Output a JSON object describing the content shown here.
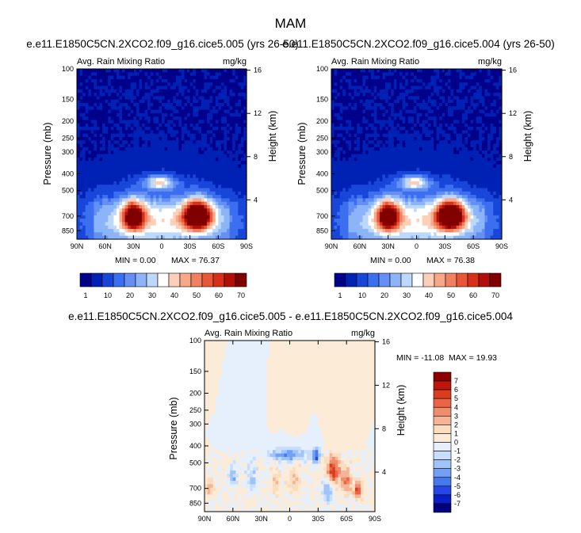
{
  "figure": {
    "title": "MAM",
    "diff_title": "e.e11.E1850C5CN.2XCO2.f09_g16.cice5.005 - e.e11.E1850C5CN.2XCO2.f09_g16.cice5.004"
  },
  "colors": {
    "background_field": "#00008b",
    "abs_palette": [
      "#00008b",
      "#0022b4",
      "#1846d8",
      "#3c6ef0",
      "#6490f4",
      "#8cb4f8",
      "#bcd8fc",
      "#ffffff",
      "#fcd0b8",
      "#f8a888",
      "#f08060",
      "#e85838",
      "#d83018",
      "#b01008",
      "#800000"
    ],
    "diff_palette": [
      "#00007f",
      "#0a1ec8",
      "#2846e6",
      "#4678f0",
      "#73a0f5",
      "#a0c3fa",
      "#c8defc",
      "#e6f0fc",
      "#fcebd7",
      "#fadcbe",
      "#f5b496",
      "#f08c6e",
      "#eb6446",
      "#dc3c1e",
      "#be140a",
      "#8c0000"
    ]
  },
  "chart_data": [
    {
      "type": "heatmap",
      "name": "panel-1",
      "title": "e.e11.E1850C5CN.2XCO2.f09_g16.cice5.005 (yrs 26-50)",
      "left_label": "Avg. Rain Mixing Ratio",
      "right_label": "mg/kg",
      "xlabel": "",
      "ylabel": "Pressure (mb)",
      "y2label": "Height (km)",
      "x_ticks": [
        "90N",
        "60N",
        "30N",
        "0",
        "30S",
        "60S",
        "90S"
      ],
      "x_range": [
        90,
        -90
      ],
      "y_ticks": [
        "100",
        "150",
        "200",
        "250",
        "300",
        "400",
        "500",
        "700",
        "850"
      ],
      "y_tick_values": [
        100,
        150,
        200,
        250,
        300,
        400,
        500,
        700,
        850
      ],
      "y_range": [
        100,
        950
      ],
      "y2_ticks": [
        "16",
        "12",
        "8",
        "4"
      ],
      "y2_tick_values": [
        16,
        12,
        8,
        4
      ],
      "min_label": "MIN =   0.00",
      "max_label": "MAX =  76.37",
      "min": 0.0,
      "max": 76.37,
      "features": [
        {
          "lat": 30,
          "p": 705,
          "amp": 60,
          "lat_width": 8,
          "p_width": 90,
          "shape": "gauss"
        },
        {
          "lat": -38,
          "p": 700,
          "amp": 76,
          "lat_width": 10,
          "p_width": 90,
          "shape": "gauss"
        },
        {
          "lat": 2,
          "p": 450,
          "amp": 32,
          "lat_width": 11,
          "p_width": 28,
          "shape": "gauss"
        },
        {
          "lat": 0,
          "p": 760,
          "amp": 26,
          "lat_width": 60,
          "p_width": 180,
          "shape": "gauss"
        }
      ],
      "colorbar": {
        "labels": [
          "1",
          "10",
          "20",
          "30",
          "40",
          "50",
          "60",
          "70"
        ],
        "levels": [
          1,
          5,
          10,
          15,
          20,
          25,
          30,
          35,
          40,
          45,
          50,
          55,
          60,
          65,
          70
        ]
      }
    },
    {
      "type": "heatmap",
      "name": "panel-2",
      "title": "e.e11.E1850C5CN.2XCO2.f09_g16.cice5.004 (yrs 26-50)",
      "left_label": "Avg. Rain Mixing Ratio",
      "right_label": "mg/kg",
      "xlabel": "",
      "ylabel": "Pressure (mb)",
      "y2label": "Height (km)",
      "x_ticks": [
        "90N",
        "60N",
        "30N",
        "0",
        "30S",
        "60S",
        "90S"
      ],
      "x_range": [
        90,
        -90
      ],
      "y_ticks": [
        "100",
        "150",
        "200",
        "250",
        "300",
        "400",
        "500",
        "700",
        "850"
      ],
      "y_tick_values": [
        100,
        150,
        200,
        250,
        300,
        400,
        500,
        700,
        850
      ],
      "y_range": [
        100,
        950
      ],
      "y2_ticks": [
        "16",
        "12",
        "8",
        "4"
      ],
      "y2_tick_values": [
        16,
        12,
        8,
        4
      ],
      "min_label": "MIN =   0.00",
      "max_label": "MAX =  76.38",
      "min": 0.0,
      "max": 76.38,
      "features": [
        {
          "lat": 30,
          "p": 705,
          "amp": 62,
          "lat_width": 8,
          "p_width": 90,
          "shape": "gauss"
        },
        {
          "lat": -36,
          "p": 700,
          "amp": 76,
          "lat_width": 10,
          "p_width": 90,
          "shape": "gauss"
        },
        {
          "lat": 2,
          "p": 450,
          "amp": 32,
          "lat_width": 11,
          "p_width": 28,
          "shape": "gauss"
        },
        {
          "lat": 0,
          "p": 760,
          "amp": 26,
          "lat_width": 60,
          "p_width": 180,
          "shape": "gauss"
        }
      ],
      "colorbar": {
        "labels": [
          "1",
          "10",
          "20",
          "30",
          "40",
          "50",
          "60",
          "70"
        ],
        "levels": [
          1,
          5,
          10,
          15,
          20,
          25,
          30,
          35,
          40,
          45,
          50,
          55,
          60,
          65,
          70
        ]
      }
    },
    {
      "type": "heatmap",
      "name": "panel-diff",
      "title": "e.e11.E1850C5CN.2XCO2.f09_g16.cice5.005 - e.e11.E1850C5CN.2XCO2.f09_g16.cice5.004",
      "left_label": "Avg. Rain Mixing Ratio",
      "right_label": "mg/kg",
      "xlabel": "",
      "ylabel": "Pressure (mb)",
      "y2label": "Height (km)",
      "x_ticks": [
        "90N",
        "60N",
        "30N",
        "0",
        "30S",
        "60S",
        "90S"
      ],
      "x_range": [
        90,
        -90
      ],
      "y_ticks": [
        "100",
        "150",
        "200",
        "250",
        "300",
        "400",
        "500",
        "700",
        "850"
      ],
      "y_tick_values": [
        100,
        150,
        200,
        250,
        300,
        400,
        500,
        700,
        850
      ],
      "y_range": [
        100,
        950
      ],
      "y2_ticks": [
        "16",
        "12",
        "8",
        "4"
      ],
      "y2_tick_values": [
        16,
        12,
        8,
        4
      ],
      "min_label": "MIN = -11.08",
      "max_label": "MAX =  19.93",
      "min": -11.08,
      "max": 19.93,
      "features": [
        {
          "lat": 2,
          "p": 450,
          "amp": -4,
          "lat_width": 14,
          "p_width": 28,
          "shape": "gauss"
        },
        {
          "lat": -28,
          "p": 460,
          "amp": -5,
          "lat_width": 3,
          "p_width": 35,
          "shape": "gauss"
        },
        {
          "lat": -46,
          "p": 560,
          "amp": 6,
          "lat_width": 5,
          "p_width": 70,
          "shape": "gauss"
        },
        {
          "lat": -60,
          "p": 640,
          "amp": 4,
          "lat_width": 4,
          "p_width": 70,
          "shape": "gauss"
        },
        {
          "lat": -72,
          "p": 720,
          "amp": 5,
          "lat_width": 3,
          "p_width": 60,
          "shape": "gauss"
        },
        {
          "lat": -40,
          "p": 720,
          "amp": -3,
          "lat_width": 4,
          "p_width": 80,
          "shape": "gauss"
        },
        {
          "lat": 15,
          "p": 650,
          "amp": 2,
          "lat_width": 3,
          "p_width": 80,
          "shape": "gauss"
        },
        {
          "lat": 60,
          "p": 600,
          "amp": -3,
          "lat_width": 3,
          "p_width": 60,
          "shape": "gauss"
        },
        {
          "lat": 40,
          "p": 620,
          "amp": -2,
          "lat_width": 4,
          "p_width": 90,
          "shape": "gauss"
        },
        {
          "lat": -5,
          "p": 620,
          "amp": 2,
          "lat_width": 5,
          "p_width": 80,
          "shape": "gauss"
        },
        {
          "lat": 85,
          "p": 700,
          "amp": 3,
          "lat_width": 3,
          "p_width": 50,
          "shape": "gauss"
        }
      ],
      "colorbar": {
        "labels": [
          "7",
          "6",
          "5",
          "4",
          "3",
          "2",
          "1",
          "0",
          "-1",
          "-2",
          "-3",
          "-4",
          "-5",
          "-6",
          "-7"
        ],
        "levels": [
          7,
          6,
          5,
          4,
          3,
          2,
          1,
          0,
          -1,
          -2,
          -3,
          -4,
          -5,
          -6,
          -7
        ]
      }
    }
  ]
}
